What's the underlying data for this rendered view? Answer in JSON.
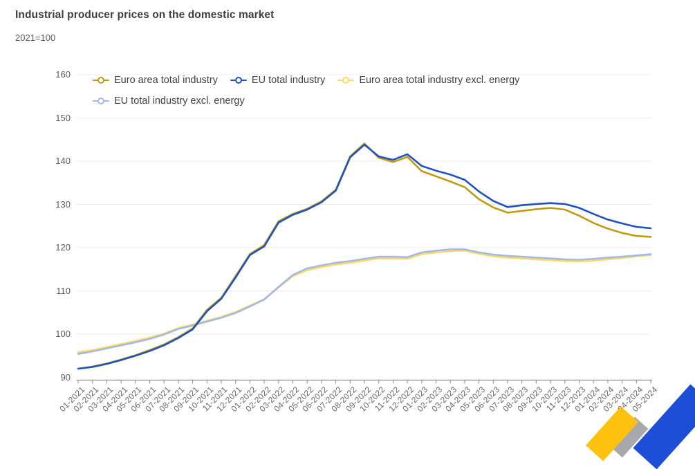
{
  "header": {
    "title": "Industrial producer prices on the domestic market",
    "subtitle": "2021=100"
  },
  "chart_data": {
    "type": "line",
    "title": "Industrial producer prices on the domestic market",
    "index_note": "2021=100",
    "x": [
      "01-2021",
      "02-2021",
      "03-2021",
      "04-2021",
      "05-2021",
      "06-2021",
      "07-2021",
      "08-2021",
      "09-2021",
      "10-2021",
      "11-2021",
      "12-2021",
      "01-2022",
      "02-2022",
      "03-2022",
      "04-2022",
      "05-2022",
      "06-2022",
      "07-2022",
      "08-2022",
      "09-2022",
      "10-2022",
      "11-2022",
      "12-2022",
      "01-2023",
      "02-2023",
      "03-2023",
      "04-2023",
      "05-2023",
      "06-2023",
      "07-2023",
      "08-2023",
      "09-2023",
      "10-2023",
      "11-2023",
      "12-2023",
      "01-2024",
      "02-2024",
      "03-2024",
      "04-2024",
      "05-2024"
    ],
    "series": [
      {
        "name": "Euro area total industry",
        "color": "#bf9b11",
        "values": [
          92.0,
          92.5,
          93.2,
          94.1,
          95.1,
          96.3,
          97.6,
          99.3,
          101.3,
          105.6,
          108.4,
          113.4,
          118.5,
          120.6,
          126.1,
          127.8,
          129.0,
          130.7,
          133.4,
          141.1,
          144.1,
          140.8,
          139.8,
          141.0,
          137.7,
          136.5,
          135.3,
          134.0,
          131.2,
          129.3,
          128.1,
          128.5,
          128.9,
          129.2,
          128.8,
          127.4,
          125.7,
          124.4,
          123.4,
          122.7,
          122.5
        ]
      },
      {
        "name": "EU total industry",
        "color": "#1f52be",
        "values": [
          92.0,
          92.4,
          93.1,
          94.0,
          95.0,
          96.1,
          97.4,
          99.1,
          101.1,
          105.3,
          108.2,
          113.1,
          118.3,
          120.3,
          125.8,
          127.6,
          128.8,
          130.5,
          133.2,
          140.9,
          143.8,
          141.1,
          140.3,
          141.6,
          138.9,
          137.8,
          136.9,
          135.7,
          133.0,
          130.8,
          129.4,
          129.8,
          130.1,
          130.3,
          130.1,
          129.2,
          127.8,
          126.5,
          125.6,
          124.8,
          124.5
        ]
      },
      {
        "name": "Euro area total industry excl. energy",
        "color": "#ffd966",
        "values": [
          95.8,
          96.3,
          97.0,
          97.7,
          98.4,
          99.2,
          100.1,
          101.4,
          102.2,
          103.1,
          104.0,
          105.1,
          106.6,
          108.1,
          110.8,
          113.4,
          114.8,
          115.5,
          116.1,
          116.5,
          117.0,
          117.5,
          117.5,
          117.4,
          118.5,
          118.9,
          119.2,
          119.3,
          118.6,
          118.0,
          117.7,
          117.5,
          117.3,
          117.1,
          116.9,
          116.8,
          117.0,
          117.3,
          117.6,
          118.0,
          118.3
        ]
      },
      {
        "name": "EU total industry excl. energy",
        "color": "#a0b9e6",
        "values": [
          95.4,
          96.0,
          96.7,
          97.4,
          98.1,
          98.9,
          99.9,
          101.2,
          102.0,
          102.9,
          103.8,
          104.9,
          106.4,
          108.0,
          110.9,
          113.7,
          115.2,
          115.9,
          116.5,
          116.9,
          117.4,
          117.9,
          117.9,
          117.8,
          118.9,
          119.3,
          119.6,
          119.6,
          118.9,
          118.4,
          118.1,
          117.9,
          117.7,
          117.5,
          117.3,
          117.2,
          117.4,
          117.7,
          117.9,
          118.2,
          118.5
        ]
      }
    ],
    "ylim": [
      90,
      160
    ],
    "yticks": [
      90,
      100,
      110,
      120,
      130,
      140,
      150,
      160
    ],
    "grid": "horizontal",
    "legend_position": "top-left, two rows"
  },
  "logo": {
    "name": "eurostat-logo-corner",
    "colors": {
      "yellow": "#fec10e",
      "gray": "#a7a9ac",
      "blue": "#1d4ed8"
    }
  },
  "axis_colors": {
    "gridline": "#e9e9ec",
    "axis": "#8c8c8c",
    "tick_text": "#63666a"
  }
}
